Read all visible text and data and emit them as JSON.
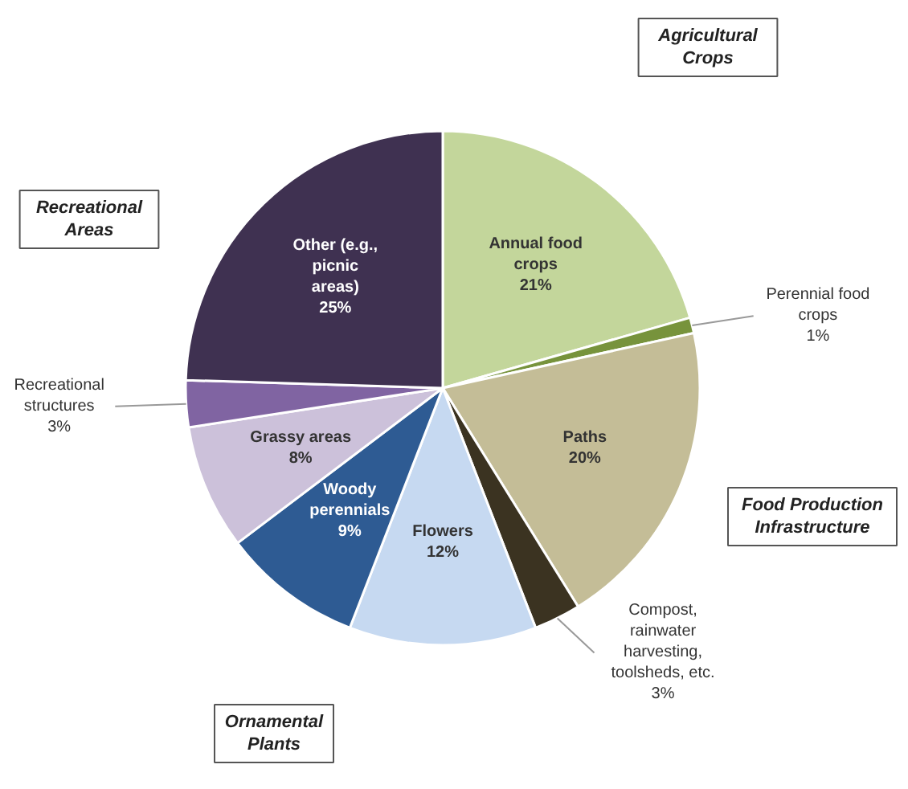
{
  "chart_data": {
    "type": "pie",
    "categories": [
      "Annual food crops",
      "Perennial food crops",
      "Paths",
      "Compost, rainwater harvesting, toolsheds, etc.",
      "Flowers",
      "Woody perennials",
      "Grassy areas",
      "Recreational structures",
      "Other (e.g., picnic areas)"
    ],
    "values": [
      21,
      1,
      20,
      3,
      12,
      9,
      8,
      3,
      25
    ],
    "value_labels": [
      "21%",
      "1%",
      "20%",
      "3%",
      "12%",
      "9%",
      "8%",
      "3%",
      "25%"
    ],
    "colors": [
      "#c3d69b",
      "#77933c",
      "#c4bd97",
      "#3b3321",
      "#c6d9f1",
      "#2e5b93",
      "#ccc1da",
      "#8064a2",
      "#3f3151"
    ],
    "annotations": [
      "Agricultural Crops",
      "Food Production Infrastructure",
      "Ornamental Plants",
      "Recreational Areas"
    ]
  }
}
